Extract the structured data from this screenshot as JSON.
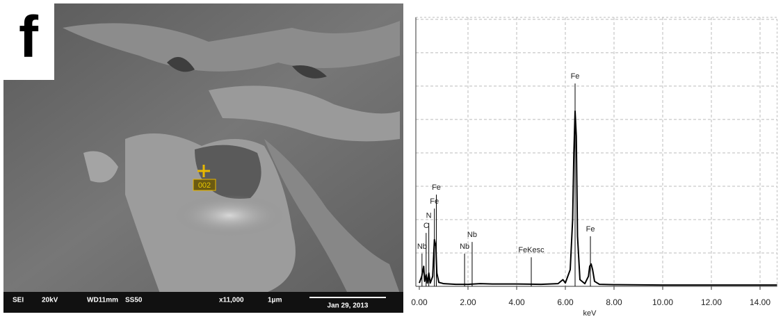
{
  "figure": {
    "label": "f"
  },
  "micrograph": {
    "marker": "002",
    "info_bar": [
      "SEI",
      "20kV",
      "WD11mm",
      "SS50",
      "x11,000",
      "1μm"
    ],
    "date": "Jan 29, 2013"
  },
  "chart_data": {
    "type": "line",
    "x_label": "keV",
    "x": [
      0,
      0.1,
      0.18,
      0.22,
      0.28,
      0.33,
      0.39,
      0.45,
      0.55,
      0.62,
      0.68,
      0.72,
      0.8,
      1.0,
      1.5,
      2.0,
      2.5,
      3.0,
      4.0,
      5.0,
      5.7,
      5.9,
      6.0,
      6.2,
      6.3,
      6.35,
      6.4,
      6.45,
      6.5,
      6.6,
      6.8,
      6.95,
      7.0,
      7.06,
      7.12,
      7.2,
      7.4,
      8,
      10,
      12,
      14,
      14.7
    ],
    "series": [
      {
        "color": "#000000",
        "values": [
          0.1,
          0.3,
          0.6,
          0.15,
          0.35,
          0.1,
          0.4,
          0.1,
          0.3,
          1.4,
          1.2,
          0.4,
          0.12,
          0.08,
          0.06,
          0.06,
          0.08,
          0.07,
          0.07,
          0.06,
          0.08,
          0.2,
          0.1,
          0.5,
          2.0,
          4.0,
          5.25,
          4.5,
          1.5,
          0.2,
          0.08,
          0.3,
          0.6,
          0.67,
          0.5,
          0.15,
          0.06,
          0.05,
          0.04,
          0.04,
          0.04,
          0.04
        ]
      }
    ],
    "xlim": [
      0,
      14.7
    ],
    "ylim": [
      0,
      8.06
    ],
    "xticks": [
      {
        "value": 0,
        "label": "0.00"
      },
      {
        "value": 2,
        "label": "2.00"
      },
      {
        "value": 4,
        "label": "4.00"
      },
      {
        "value": 6,
        "label": "6.00"
      },
      {
        "value": 8,
        "label": "8.00"
      },
      {
        "value": 10,
        "label": "10.00"
      },
      {
        "value": 12,
        "label": "12.00"
      },
      {
        "value": 14,
        "label": "14.00"
      }
    ],
    "yticks": [
      1,
      2,
      3,
      4,
      5,
      6,
      7,
      8
    ],
    "grid": true,
    "annotations": [
      {
        "label": "Nb",
        "x": 0.11,
        "y": 0.98
      },
      {
        "label": "C",
        "x": 0.28,
        "y": 1.6
      },
      {
        "label": "N",
        "x": 0.39,
        "y": 1.9
      },
      {
        "label": "Fe",
        "x": 0.62,
        "y": 2.33
      },
      {
        "label": "Fe",
        "x": 0.7,
        "y": 2.75
      },
      {
        "label": "Nb",
        "x": 1.86,
        "y": 0.98
      },
      {
        "label": "Nb",
        "x": 2.17,
        "y": 1.33
      },
      {
        "label": "FeKesc",
        "x": 4.6,
        "y": 0.87
      },
      {
        "label": "Fe",
        "x": 6.4,
        "y": 6.08
      },
      {
        "label": "Fe",
        "x": 7.03,
        "y": 1.5
      }
    ]
  }
}
